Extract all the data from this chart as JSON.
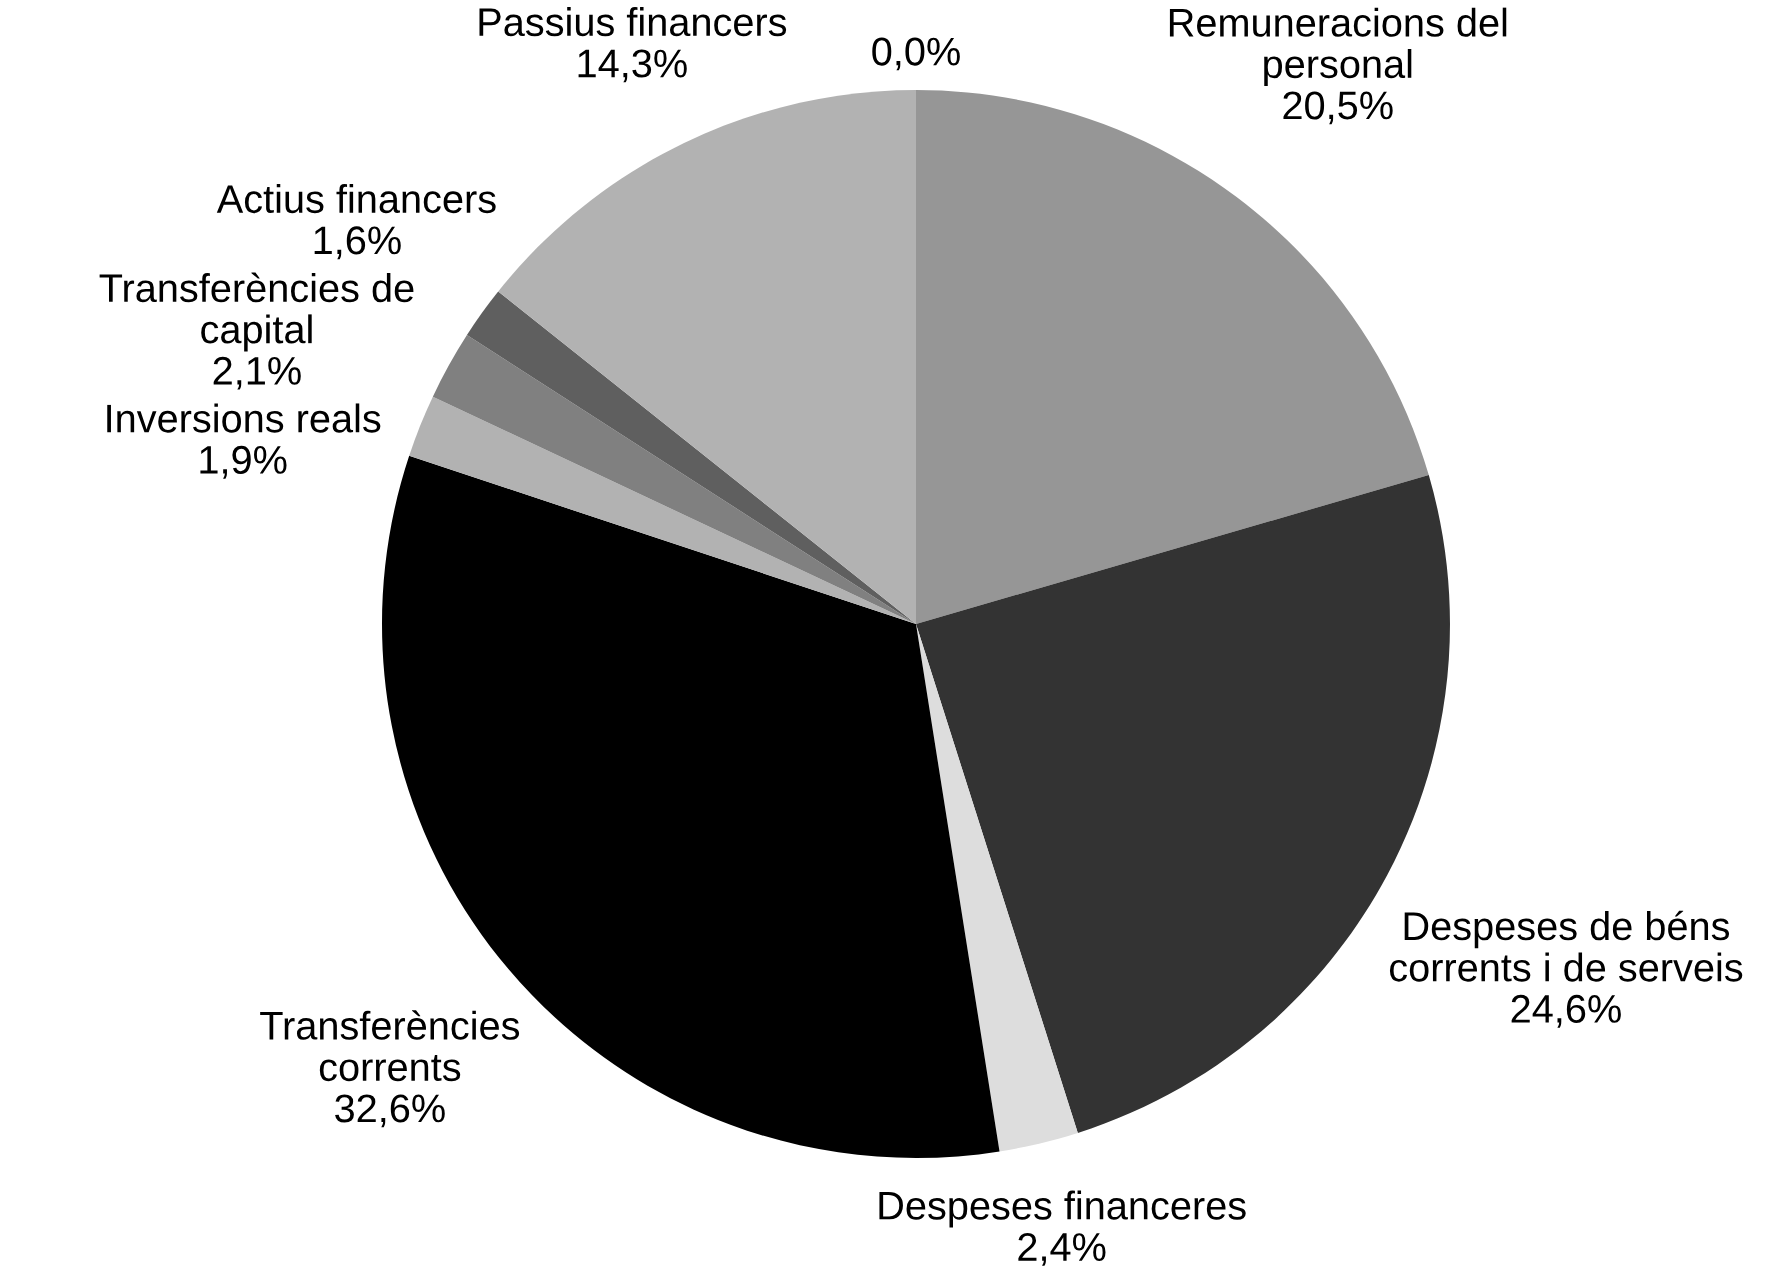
{
  "chart_data": {
    "type": "pie",
    "categories": [
      "Remuneracions del personal",
      "Despeses de béns corrents i de serveis",
      "Despeses financeres",
      "Transferències corrents",
      "Inversions reals",
      "Transferències de capital",
      "Actius financers",
      "Passius financers",
      null
    ],
    "values": [
      20.5,
      24.6,
      2.4,
      32.6,
      1.9,
      2.1,
      1.6,
      14.3,
      0.0
    ],
    "value_labels": [
      "20,5%",
      "24,6%",
      "2,4%",
      "32,6%",
      "1,9%",
      "2,1%",
      "1,6%",
      "14,3%",
      "0,0%"
    ],
    "colors": [
      "#969696",
      "#333333",
      "#dddddd",
      "#000000",
      "#b2b2b2",
      "#808080",
      "#5f5f5f",
      "#b2b2b2",
      "#808080"
    ]
  }
}
